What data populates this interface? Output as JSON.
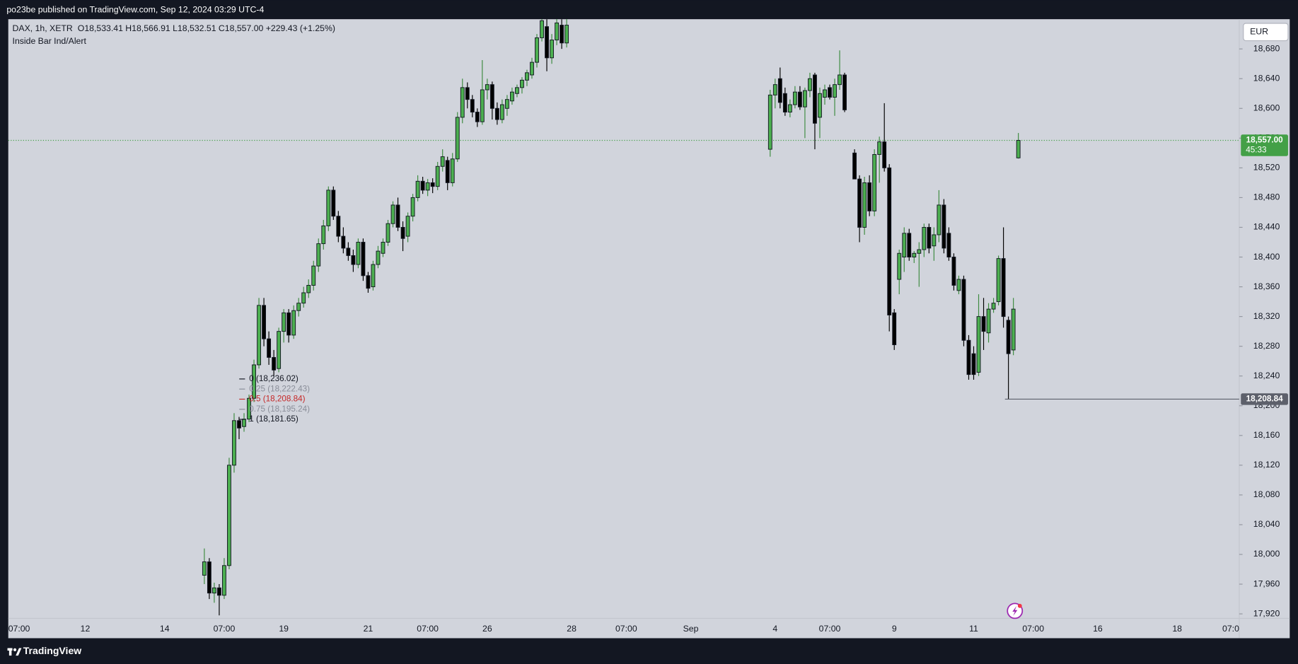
{
  "header": {
    "title": "po23be published on TradingView.com, Sep 12, 2024 03:29 UTC-4"
  },
  "chart_data": {
    "type": "candlestick",
    "symbol": "DAX, 1h, XETR",
    "ohlc_text": "O18,533.41 H18,566.91 L18,532.51 C18,557.00 +229.43 (+1.25%)",
    "indicator": "Inside Bar Ind/Alert",
    "currency": "EUR",
    "categories": [
      "07:00",
      null,
      null,
      null,
      null,
      null,
      null,
      null,
      null,
      null,
      null,
      null,
      null,
      null,
      null,
      "12",
      null,
      null,
      null,
      null,
      null,
      null,
      null,
      null,
      null,
      null,
      null,
      null,
      null,
      null,
      null,
      "14",
      null,
      null,
      null,
      null,
      null,
      null,
      null,
      null,
      null,
      null,
      null,
      "07:00",
      null,
      null,
      null,
      null,
      null,
      null,
      null,
      null,
      null,
      null,
      null,
      "19",
      null,
      null,
      null,
      null,
      null,
      null,
      null,
      null,
      null,
      null,
      null,
      null,
      null,
      null,
      null,
      null,
      "21",
      null,
      null,
      null,
      null,
      null,
      null,
      null,
      null,
      null,
      null,
      null,
      "07:00",
      null,
      null,
      null,
      null,
      null,
      null,
      null,
      null,
      null,
      null,
      null,
      "26",
      null,
      null,
      null,
      null,
      null,
      null,
      null,
      null,
      null,
      null,
      null,
      null,
      null,
      null,
      null,
      null,
      "28",
      null,
      null,
      null,
      null,
      null,
      null,
      null,
      null,
      null,
      null,
      "07:00",
      null,
      null,
      null,
      null,
      null,
      null,
      null,
      null,
      null,
      null,
      null,
      null,
      "Sep",
      null,
      null,
      null,
      null,
      null,
      null,
      null,
      null,
      null,
      null,
      null,
      null,
      null,
      null,
      null,
      null,
      "4",
      null,
      null,
      null,
      null,
      null,
      null,
      null,
      null,
      null,
      null,
      "07:00",
      null,
      null,
      null,
      null,
      null,
      null,
      null,
      null,
      null,
      null,
      null,
      null,
      "9",
      null,
      null,
      null,
      null,
      null,
      null,
      null,
      null,
      null,
      null,
      null,
      null,
      null,
      null,
      null,
      "11",
      null,
      null,
      null,
      null,
      null,
      null,
      null,
      null,
      null,
      null,
      null,
      "07:00",
      null,
      null,
      null,
      null,
      null,
      null,
      null,
      null,
      null,
      null,
      null,
      null,
      "16",
      null,
      null,
      null,
      null,
      null,
      null,
      null,
      null,
      null,
      null,
      null,
      null,
      null,
      null,
      null,
      "18",
      null,
      null,
      null,
      null,
      null,
      null,
      null,
      null,
      null,
      null,
      null,
      "07:0"
    ],
    "open": [
      null,
      null,
      null,
      null,
      null,
      null,
      null,
      null,
      null,
      null,
      null,
      null,
      null,
      null,
      null,
      null,
      null,
      null,
      null,
      null,
      null,
      null,
      null,
      null,
      null,
      null,
      null,
      null,
      null,
      null,
      null,
      null,
      null,
      null,
      null,
      null,
      null,
      null,
      null,
      17972,
      17990,
      17948,
      17955,
      17945,
      17985,
      18120,
      18180,
      18172,
      18182,
      18210,
      18255,
      18335,
      18290,
      18265,
      18250,
      18300,
      18325,
      18295,
      18328,
      18338,
      18352,
      18362,
      18388,
      18418,
      18442,
      18490,
      18455,
      18428,
      18412,
      18402,
      18390,
      18420,
      18375,
      18360,
      18390,
      18405,
      18420,
      18445,
      18470,
      18440,
      18428,
      18455,
      18480,
      18502,
      18490,
      18500,
      18495,
      18522,
      18530,
      18500,
      18532,
      18588,
      18628,
      18612,
      18595,
      18582,
      18625,
      18632,
      18600,
      18585,
      18600,
      18610,
      18620,
      18628,
      18638,
      18645,
      18662,
      18695,
      18710,
      18668,
      18692,
      18712,
      18688,
      null,
      null,
      null,
      null,
      null,
      null,
      null,
      null,
      null,
      null,
      null,
      null,
      null,
      null,
      null,
      null,
      null,
      null,
      null,
      null,
      null,
      null,
      null,
      null,
      null,
      null,
      null,
      null,
      null,
      null,
      null,
      null,
      null,
      null,
      null,
      null,
      null,
      null,
      null,
      null,
      18545,
      18618,
      18640,
      18620,
      18595,
      18605,
      18622,
      18602,
      18624,
      18645,
      18588,
      18615,
      18628,
      18615,
      18632,
      18645,
      null,
      18540,
      18505,
      18440,
      18500,
      18462,
      18538,
      18555,
      18520,
      18325,
      18370,
      18400,
      18432,
      18400,
      18405,
      18410,
      18440,
      18415,
      18430,
      18470,
      18432,
      18400,
      18355,
      18370,
      18288,
      18270,
      18245,
      18320,
      18298,
      18330,
      18340,
      18398,
      18315,
      18275,
      18533.41,
      null,
      null,
      null,
      null,
      null,
      null,
      null,
      null,
      null,
      null,
      null,
      null,
      null,
      null,
      null,
      null,
      null,
      null,
      null,
      null,
      null,
      null,
      null,
      null,
      null,
      null,
      null,
      null,
      null,
      null,
      null,
      null,
      null,
      null,
      null,
      null,
      null,
      null,
      null,
      null,
      null,
      null,
      null,
      null
    ],
    "high": [
      null,
      null,
      null,
      null,
      null,
      null,
      null,
      null,
      null,
      null,
      null,
      null,
      null,
      null,
      null,
      null,
      null,
      null,
      null,
      null,
      null,
      null,
      null,
      null,
      null,
      null,
      null,
      null,
      null,
      null,
      null,
      null,
      null,
      null,
      null,
      null,
      null,
      null,
      null,
      18008,
      17995,
      17962,
      17960,
      17995,
      18130,
      18190,
      18185,
      18190,
      18215,
      18262,
      18345,
      18345,
      18300,
      18275,
      18305,
      18330,
      18330,
      18335,
      18345,
      18360,
      18370,
      18395,
      18425,
      18450,
      18495,
      18495,
      18462,
      18440,
      18420,
      18410,
      18425,
      18425,
      18380,
      18395,
      18415,
      18425,
      18450,
      18475,
      18480,
      18448,
      18460,
      18485,
      18510,
      18508,
      18505,
      18506,
      18528,
      18545,
      18535,
      18540,
      18595,
      18640,
      18635,
      18618,
      18600,
      18665,
      18640,
      18636,
      18608,
      18612,
      18618,
      18628,
      18632,
      18642,
      18652,
      18668,
      18700,
      18725,
      18720,
      18700,
      18725,
      18720,
      18722,
      null,
      null,
      null,
      null,
      null,
      null,
      null,
      null,
      null,
      null,
      null,
      null,
      null,
      null,
      null,
      null,
      null,
      null,
      null,
      null,
      null,
      null,
      null,
      null,
      null,
      null,
      null,
      null,
      null,
      null,
      null,
      null,
      null,
      null,
      null,
      null,
      null,
      null,
      null,
      null,
      18625,
      18640,
      18655,
      18628,
      18612,
      18630,
      18630,
      18628,
      18648,
      18648,
      18628,
      18632,
      18632,
      18640,
      18678,
      18648,
      null,
      18545,
      18510,
      18508,
      18510,
      18545,
      18562,
      18607,
      18525,
      18330,
      18410,
      18440,
      18438,
      18408,
      18420,
      18445,
      18445,
      18440,
      18490,
      18478,
      18440,
      18405,
      18375,
      18375,
      18295,
      18280,
      18350,
      18345,
      18338,
      18345,
      18402,
      18440,
      18320,
      18345,
      18566.91,
      null,
      null,
      null,
      null,
      null,
      null,
      null,
      null,
      null,
      null,
      null,
      null,
      null,
      null,
      null,
      null,
      null,
      null,
      null,
      null,
      null,
      null,
      null,
      null,
      null,
      null,
      null,
      null,
      null,
      null,
      null,
      null,
      null,
      null,
      null,
      null,
      null,
      null,
      null,
      null,
      null,
      null,
      null,
      null
    ],
    "low": [
      null,
      null,
      null,
      null,
      null,
      null,
      null,
      null,
      null,
      null,
      null,
      null,
      null,
      null,
      null,
      null,
      null,
      null,
      null,
      null,
      null,
      null,
      null,
      null,
      null,
      null,
      null,
      null,
      null,
      null,
      null,
      null,
      null,
      null,
      null,
      null,
      null,
      null,
      null,
      17960,
      17940,
      17935,
      17918,
      17940,
      17980,
      18110,
      18155,
      18165,
      18178,
      18205,
      18250,
      18280,
      18255,
      18240,
      18245,
      18285,
      18285,
      18290,
      18320,
      18332,
      18345,
      18355,
      18380,
      18410,
      18435,
      18450,
      18420,
      18405,
      18395,
      18380,
      18385,
      18368,
      18352,
      18355,
      18385,
      18400,
      18415,
      18440,
      18435,
      18408,
      18420,
      18448,
      18475,
      18485,
      18482,
      18486,
      18490,
      18515,
      18490,
      18495,
      18528,
      18580,
      18600,
      18588,
      18575,
      18578,
      18612,
      18585,
      18578,
      18580,
      18590,
      18605,
      18615,
      18620,
      18630,
      18640,
      18655,
      18690,
      18650,
      18660,
      18685,
      18680,
      18682,
      null,
      null,
      null,
      null,
      null,
      null,
      null,
      null,
      null,
      null,
      null,
      null,
      null,
      null,
      null,
      null,
      null,
      null,
      null,
      null,
      null,
      null,
      null,
      null,
      null,
      null,
      null,
      null,
      null,
      null,
      null,
      null,
      null,
      null,
      null,
      null,
      null,
      null,
      null,
      null,
      18535,
      18600,
      18600,
      18590,
      18588,
      18600,
      18598,
      18560,
      18615,
      18545,
      18560,
      18605,
      18612,
      18590,
      18625,
      18595,
      null,
      18505,
      18420,
      18430,
      18455,
      18455,
      18500,
      18515,
      18300,
      18275,
      18350,
      18380,
      18395,
      18392,
      18360,
      18400,
      18405,
      18395,
      18420,
      18405,
      18395,
      18355,
      18350,
      18280,
      18235,
      18235,
      18240,
      18275,
      18285,
      18325,
      18335,
      18305,
      18209,
      18268,
      18532.51,
      null,
      null,
      null,
      null,
      null,
      null,
      null,
      null,
      null,
      null,
      null,
      null,
      null,
      null,
      null,
      null,
      null,
      null,
      null,
      null,
      null,
      null,
      null,
      null,
      null,
      null,
      null,
      null,
      null,
      null,
      null,
      null,
      null,
      null,
      null,
      null,
      null,
      null,
      null,
      null,
      null,
      null,
      null,
      null
    ],
    "close": [
      null,
      null,
      null,
      null,
      null,
      null,
      null,
      null,
      null,
      null,
      null,
      null,
      null,
      null,
      null,
      null,
      null,
      null,
      null,
      null,
      null,
      null,
      null,
      null,
      null,
      null,
      null,
      null,
      null,
      null,
      null,
      null,
      null,
      null,
      null,
      null,
      null,
      null,
      null,
      17990,
      17948,
      17955,
      17945,
      17985,
      18120,
      18180,
      18170,
      18182,
      18210,
      18255,
      18335,
      18290,
      18265,
      18248,
      18300,
      18325,
      18295,
      18328,
      18338,
      18352,
      18362,
      18388,
      18418,
      18442,
      18490,
      18455,
      18428,
      18412,
      18402,
      18390,
      18420,
      18375,
      18358,
      18390,
      18408,
      18420,
      18445,
      18470,
      18440,
      18425,
      18455,
      18480,
      18502,
      18490,
      18500,
      18495,
      18522,
      18535,
      18500,
      18532,
      18588,
      18628,
      18612,
      18595,
      18582,
      18625,
      18632,
      18600,
      18585,
      18605,
      18612,
      18622,
      18628,
      18638,
      18648,
      18662,
      18695,
      18718,
      18668,
      18692,
      18715,
      18688,
      18712,
      null,
      null,
      null,
      null,
      null,
      null,
      null,
      null,
      null,
      null,
      null,
      null,
      null,
      null,
      null,
      null,
      null,
      null,
      null,
      null,
      null,
      null,
      null,
      null,
      null,
      null,
      null,
      null,
      null,
      null,
      null,
      null,
      null,
      null,
      null,
      null,
      null,
      null,
      null,
      null,
      18618,
      18632,
      18608,
      18595,
      18605,
      18622,
      18602,
      18624,
      18640,
      18580,
      18620,
      18625,
      18615,
      18632,
      18645,
      18598,
      null,
      18505,
      18440,
      18500,
      18462,
      18538,
      18555,
      18520,
      18322,
      18282,
      18405,
      18432,
      18400,
      18405,
      18410,
      18440,
      18412,
      18430,
      18470,
      18412,
      18400,
      18362,
      18370,
      18288,
      18242,
      18242,
      18320,
      18300,
      18330,
      18338,
      18398,
      18320,
      18270,
      18330,
      18557,
      null,
      null,
      null,
      null,
      null,
      null,
      null,
      null,
      null,
      null,
      null,
      null,
      null,
      null,
      null,
      null,
      null,
      null,
      null,
      null,
      null,
      null,
      null,
      null,
      null,
      null,
      null,
      null,
      null,
      null,
      null,
      null,
      null,
      null,
      null,
      null,
      null,
      null,
      null,
      null,
      null,
      null,
      null,
      null
    ],
    "up_color": "#4caf50",
    "down_color": "#000000",
    "border_color": "#131722",
    "ylim": [
      17914,
      18720
    ],
    "yticks": [
      {
        "value": 17920,
        "label": "17,920"
      },
      {
        "value": 17960,
        "label": "17,960"
      },
      {
        "value": 18000,
        "label": "18,000"
      },
      {
        "value": 18040,
        "label": "18,040"
      },
      {
        "value": 18080,
        "label": "18,080"
      },
      {
        "value": 18120,
        "label": "18,120"
      },
      {
        "value": 18160,
        "label": "18,160"
      },
      {
        "value": 18200,
        "label": "18,200"
      },
      {
        "value": 18240,
        "label": "18,240"
      },
      {
        "value": 18280,
        "label": "18,280"
      },
      {
        "value": 18320,
        "label": "18,320"
      },
      {
        "value": 18360,
        "label": "18,360"
      },
      {
        "value": 18400,
        "label": "18,400"
      },
      {
        "value": 18440,
        "label": "18,440"
      },
      {
        "value": 18480,
        "label": "18,480"
      },
      {
        "value": 18520,
        "label": "18,520"
      },
      {
        "value": 18560,
        "label": "18,560"
      },
      {
        "value": 18600,
        "label": "18,600"
      },
      {
        "value": 18640,
        "label": "18,640"
      },
      {
        "value": 18680,
        "label": "18,680"
      }
    ],
    "grid": false,
    "last_price": {
      "value": 18557,
      "label": "18,557.00",
      "countdown": "45:33",
      "color": "#43a047"
    },
    "price_line": {
      "value": 18208.84,
      "label": "18,208.84",
      "color": "#5d606b"
    },
    "fib_levels": [
      {
        "value": 18236.02,
        "label": "0 (18,236.02)",
        "color": "#131722"
      },
      {
        "value": 18222.43,
        "label": "0.25 (18,222.43)",
        "color": "#8a8e99"
      },
      {
        "value": 18208.84,
        "label": "0.5 (18,208.84)",
        "color": "#c62828"
      },
      {
        "value": 18195.24,
        "label": "0.75 (18,195.24)",
        "color": "#8a8e99"
      },
      {
        "value": 18181.65,
        "label": "1 (18,181.65)",
        "color": "#131722"
      }
    ]
  },
  "footer": {
    "brand": "TradingView"
  }
}
